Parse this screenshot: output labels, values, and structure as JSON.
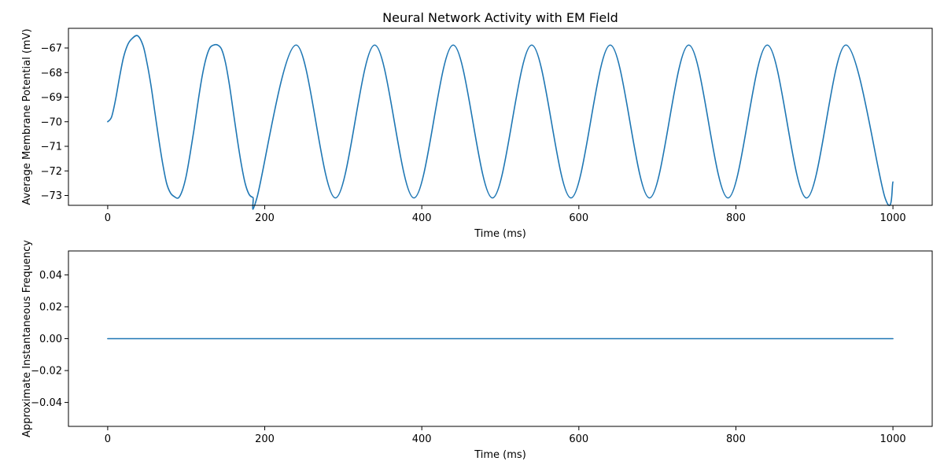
{
  "chart_data": [
    {
      "type": "line",
      "title": "Neural Network Activity with EM Field",
      "xlabel": "Time (ms)",
      "ylabel": "Average Membrane Potential (mV)",
      "xlim": [
        -50,
        1050
      ],
      "ylim": [
        -73.4,
        -66.2
      ],
      "xticks": [
        0,
        200,
        400,
        600,
        800,
        1000
      ],
      "xtick_labels": [
        "0",
        "200",
        "400",
        "600",
        "800",
        "1000"
      ],
      "yticks": [
        -73,
        -72,
        -71,
        -70,
        -69,
        -68,
        -67
      ],
      "ytick_labels": [
        "−73",
        "−72",
        "−71",
        "−70",
        "−69",
        "−68",
        "−67"
      ],
      "grid": false,
      "series": [
        {
          "color": "#1f77b4",
          "x": [
            0,
            5,
            10,
            15,
            20,
            25,
            30,
            38,
            45,
            50,
            55,
            60,
            65,
            70,
            75,
            80,
            85,
            90,
            95,
            100,
            105,
            110,
            115,
            120,
            125,
            130,
            135,
            140,
            145,
            150,
            155,
            160,
            165,
            170,
            175,
            180,
            185,
            190,
            240,
            290,
            340,
            390,
            440,
            490,
            540,
            590,
            640,
            690,
            740,
            790,
            840,
            890,
            940,
            990,
            1000
          ],
          "y": [
            -70.0,
            -69.8,
            -69.1,
            -68.2,
            -67.4,
            -66.9,
            -66.65,
            -66.5,
            -66.9,
            -67.6,
            -68.5,
            -69.6,
            -70.7,
            -71.7,
            -72.5,
            -72.9,
            -73.05,
            -73.1,
            -72.8,
            -72.2,
            -71.3,
            -70.3,
            -69.2,
            -68.2,
            -67.45,
            -67.0,
            -66.88,
            -66.88,
            -67.05,
            -67.6,
            -68.5,
            -69.6,
            -70.7,
            -71.7,
            -72.5,
            -72.95,
            -73.08,
            -73.1,
            -66.88,
            -73.1,
            -66.88,
            -73.1,
            -66.88,
            -73.1,
            -66.88,
            -73.1,
            -66.88,
            -73.1,
            -66.88,
            -73.1,
            -66.88,
            -73.1,
            -66.88,
            -73.1,
            -72.45
          ]
        }
      ]
    },
    {
      "type": "line",
      "title": "",
      "xlabel": "Time (ms)",
      "ylabel": "Approximate Instantaneous Frequency",
      "xlim": [
        -50,
        1050
      ],
      "ylim": [
        -0.055,
        0.055
      ],
      "xticks": [
        0,
        200,
        400,
        600,
        800,
        1000
      ],
      "xtick_labels": [
        "0",
        "200",
        "400",
        "600",
        "800",
        "1000"
      ],
      "yticks": [
        -0.04,
        -0.02,
        0.0,
        0.02,
        0.04
      ],
      "ytick_labels": [
        "−0.04",
        "−0.02",
        "0.00",
        "0.02",
        "0.04"
      ],
      "grid": false,
      "series": [
        {
          "color": "#1f77b4",
          "x": [
            0,
            1000
          ],
          "y": [
            0,
            0
          ]
        }
      ]
    }
  ]
}
